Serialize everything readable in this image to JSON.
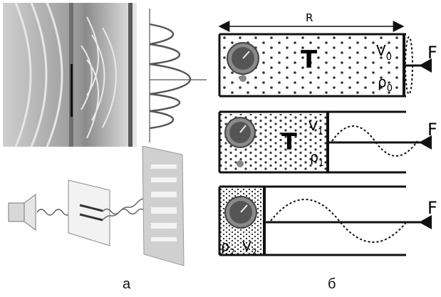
{
  "captions": {
    "left": "а",
    "right": "б"
  },
  "panel_b": {
    "top_length_label": "R",
    "force_label": "F",
    "chambers": [
      {
        "temp": "T",
        "volume": "V",
        "volume_sub": "0",
        "density": "ρ",
        "density_sub": "0"
      },
      {
        "temp": "T",
        "volume": "V",
        "volume_sub": "1",
        "density": "ρ",
        "density_sub": "1"
      },
      {
        "density": "ρ",
        "density_sub": "2",
        "volume": "V",
        "volume_sub": "2"
      }
    ]
  },
  "colors": {
    "line": "#111111",
    "dot": "#333333",
    "gauge": "#555555"
  }
}
